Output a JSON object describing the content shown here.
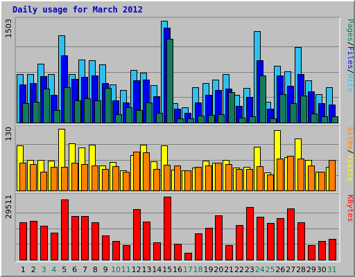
{
  "title": "Daily usage for March 2012",
  "colors": {
    "background": "#c0c0c0",
    "panel": "#c0c0c0",
    "pages": "#137b5b",
    "files": "#0000f0",
    "hits": "#30c0f0",
    "visits": "#ffff00",
    "sites": "#ff8000",
    "kbytes": "#ff0000",
    "title": "#0000c0",
    "weekend_label": "#008050"
  },
  "chart_data": [
    {
      "type": "bar",
      "name_label": "Pages / Files / Hits",
      "legend": [
        {
          "text": "Pages",
          "color": "#137b5b"
        },
        {
          "text": "/",
          "color": "#000000"
        },
        {
          "text": "Files",
          "color": "#0000f0"
        },
        {
          "text": "/",
          "color": "#000000"
        },
        {
          "text": "Hits",
          "color": "#30c0f0"
        }
      ],
      "ymax_label": "1503",
      "ylim": [
        0,
        1503
      ],
      "categories": [
        "1",
        "2",
        "3",
        "4",
        "5",
        "6",
        "7",
        "8",
        "9",
        "10",
        "11",
        "12",
        "13",
        "14",
        "15",
        "16",
        "17",
        "18",
        "19",
        "20",
        "21",
        "22",
        "23",
        "24",
        "25",
        "26",
        "27",
        "28",
        "29",
        "30",
        "31"
      ],
      "series": [
        {
          "name": "Hits",
          "values": [
            720,
            720,
            870,
            720,
            1290,
            720,
            930,
            920,
            860,
            560,
            480,
            780,
            740,
            550,
            1503,
            290,
            230,
            520,
            580,
            630,
            720,
            410,
            510,
            1350,
            310,
            840,
            760,
            1110,
            620,
            420,
            520
          ]
        },
        {
          "name": "Files",
          "values": [
            560,
            580,
            690,
            410,
            990,
            640,
            670,
            700,
            580,
            330,
            300,
            620,
            630,
            390,
            1400,
            200,
            140,
            300,
            410,
            480,
            500,
            250,
            380,
            920,
            200,
            700,
            540,
            720,
            460,
            290,
            270
          ]
        },
        {
          "name": "Pages",
          "values": [
            290,
            310,
            500,
            180,
            520,
            330,
            360,
            330,
            510,
            120,
            220,
            180,
            300,
            140,
            1240,
            60,
            60,
            100,
            110,
            120,
            450,
            70,
            90,
            700,
            60,
            420,
            290,
            400,
            130,
            90,
            90
          ]
        }
      ]
    },
    {
      "type": "bar",
      "name_label": "Sites / Visits",
      "legend": [
        {
          "text": "Sites",
          "color": "#ff8000"
        },
        {
          "text": "/",
          "color": "#000000"
        },
        {
          "text": "Visits",
          "color": "#ffff00"
        }
      ],
      "ymax_label": "130",
      "ylim": [
        0,
        130
      ],
      "categories": [
        "1",
        "2",
        "3",
        "4",
        "5",
        "6",
        "7",
        "8",
        "9",
        "10",
        "11",
        "12",
        "13",
        "14",
        "15",
        "16",
        "17",
        "18",
        "19",
        "20",
        "21",
        "22",
        "23",
        "24",
        "25",
        "26",
        "27",
        "28",
        "29",
        "30",
        "31"
      ],
      "series": [
        {
          "name": "Visits",
          "values": [
            95,
            64,
            64,
            63,
            130,
            100,
            90,
            96,
            52,
            60,
            43,
            75,
            97,
            61,
            95,
            44,
            42,
            48,
            63,
            58,
            64,
            48,
            50,
            92,
            38,
            127,
            70,
            110,
            65,
            40,
            50
          ]
        },
        {
          "name": "Sites",
          "values": [
            59,
            56,
            39,
            49,
            50,
            59,
            55,
            52,
            46,
            51,
            40,
            82,
            80,
            46,
            54,
            52,
            42,
            49,
            52,
            59,
            56,
            45,
            46,
            51,
            33,
            67,
            73,
            67,
            52,
            40,
            64
          ]
        }
      ]
    },
    {
      "type": "bar",
      "name_label": "KBytes",
      "legend": [
        {
          "text": "KBytes",
          "color": "#ff0000"
        }
      ],
      "ymax_label": "29511",
      "ylim": [
        0,
        29511
      ],
      "categories": [
        "1",
        "2",
        "3",
        "4",
        "5",
        "6",
        "7",
        "8",
        "9",
        "10",
        "11",
        "12",
        "13",
        "14",
        "15",
        "16",
        "17",
        "18",
        "19",
        "20",
        "21",
        "22",
        "23",
        "24",
        "25",
        "26",
        "27",
        "28",
        "29",
        "30",
        "31"
      ],
      "series": [
        {
          "name": "KBytes",
          "values": [
            17400,
            18100,
            15800,
            12500,
            28200,
            20300,
            20300,
            17500,
            11300,
            8700,
            6800,
            23600,
            17800,
            8200,
            29511,
            7400,
            3300,
            12200,
            14900,
            20800,
            6900,
            16100,
            24500,
            20100,
            17300,
            19300,
            24000,
            17400,
            6900,
            8600,
            9800
          ]
        }
      ]
    }
  ],
  "x_axis": {
    "days": [
      "1",
      "2",
      "3",
      "4",
      "5",
      "6",
      "7",
      "8",
      "9",
      "10",
      "11",
      "12",
      "13",
      "14",
      "15",
      "16",
      "17",
      "18",
      "19",
      "20",
      "21",
      "22",
      "23",
      "24",
      "25",
      "26",
      "27",
      "28",
      "29",
      "30",
      "31"
    ],
    "weekend_days": [
      "3",
      "4",
      "10",
      "11",
      "17",
      "18",
      "24",
      "25",
      "31"
    ]
  }
}
